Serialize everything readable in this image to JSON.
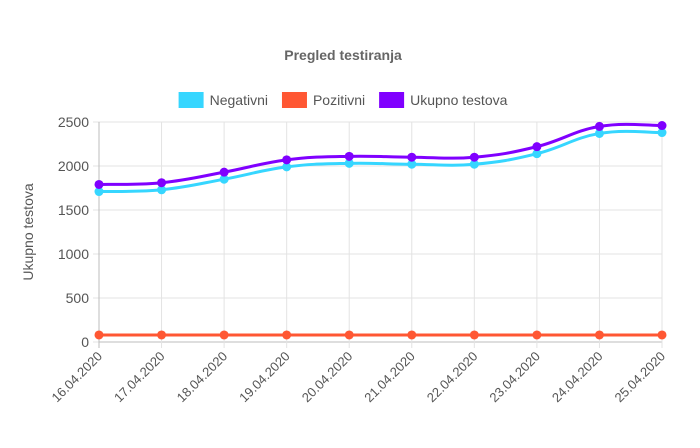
{
  "chart_data": {
    "type": "line",
    "title": "Pregled testiranja",
    "xlabel": "",
    "ylabel": "Ukupno testova",
    "ylim": [
      0,
      2500
    ],
    "yticks": [
      0,
      500,
      1000,
      1500,
      2000,
      2500
    ],
    "grid": true,
    "legend_position": "top-center",
    "categories": [
      "16.04.2020",
      "17.04.2020",
      "18.04.2020",
      "19.04.2020",
      "20.04.2020",
      "21.04.2020",
      "22.04.2020",
      "23.04.2020",
      "24.04.2020",
      "25.04.2020"
    ],
    "series": [
      {
        "name": "Negativni",
        "color": "#36d6ff",
        "values": [
          1710,
          1730,
          1850,
          1990,
          2030,
          2020,
          2020,
          2140,
          2370,
          2380
        ]
      },
      {
        "name": "Pozitivni",
        "color": "#ff5733",
        "values": [
          80,
          80,
          80,
          80,
          80,
          80,
          80,
          80,
          80,
          80
        ]
      },
      {
        "name": "Ukupno testova",
        "color": "#8000ff",
        "values": [
          1790,
          1810,
          1930,
          2070,
          2110,
          2100,
          2100,
          2220,
          2450,
          2460
        ]
      }
    ]
  }
}
